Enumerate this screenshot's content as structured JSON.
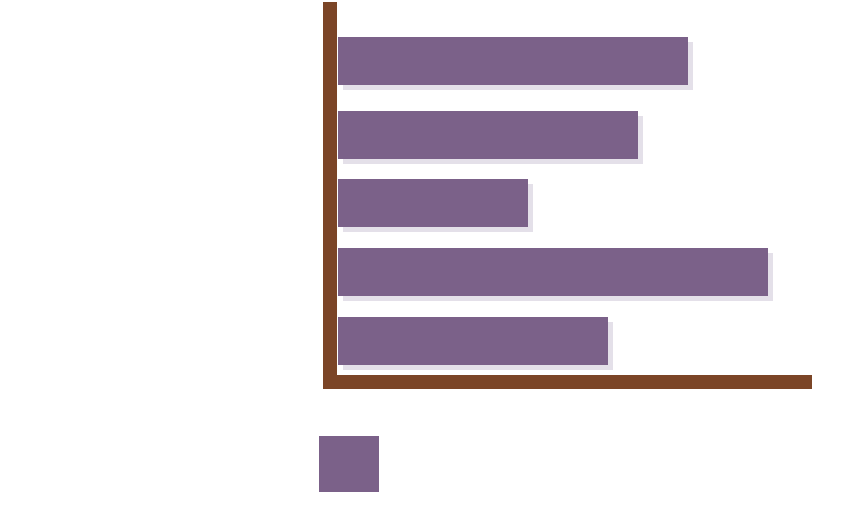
{
  "chart_data": {
    "type": "bar",
    "orientation": "horizontal",
    "title": "",
    "xlabel": "",
    "ylabel": "",
    "grid": false,
    "legend": "bottom",
    "categories": [
      "",
      "",
      "",
      "",
      ""
    ],
    "series": [
      {
        "values": [
          35,
          30,
          19,
          43,
          27
        ]
      }
    ],
    "xlim": [
      0,
      48
    ]
  },
  "colors": {
    "bar": "#7b6189",
    "axis": "#7b4527",
    "shadow": "#d9d3df"
  }
}
